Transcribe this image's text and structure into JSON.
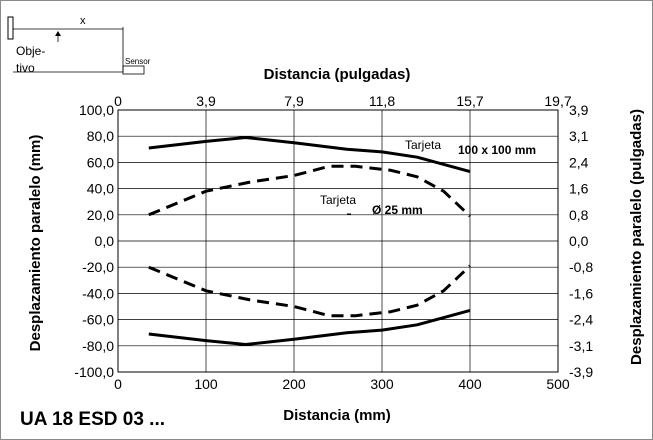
{
  "chart_data": {
    "type": "line",
    "model_label": "UA 18 ESD 03 ...",
    "xlabel": "Distancia (mm)",
    "x2label": "Distancia (pulgadas)",
    "ylabel": "Desplazamiento paralelo (mm)",
    "y2label": "Desplazamiento paralelo (pulgadas)",
    "xlim": [
      0,
      500
    ],
    "ylim": [
      -100,
      100
    ],
    "grid": true,
    "x_ticks": [
      "0",
      "100",
      "200",
      "300",
      "400",
      "500"
    ],
    "x_tick_values": [
      0,
      100,
      200,
      300,
      400,
      500
    ],
    "x2_ticks": [
      "0",
      "3,9",
      "7,9",
      "11,8",
      "15,7",
      "19,7"
    ],
    "y_ticks": [
      "100,0",
      "80,0",
      "60,0",
      "40,0",
      "20,0",
      "0,0",
      "-20,0",
      "-40,0",
      "-60,0",
      "-80,0",
      "-100,0"
    ],
    "y_tick_values": [
      100,
      80,
      60,
      40,
      20,
      0,
      -20,
      -40,
      -60,
      -80,
      -100
    ],
    "y2_ticks": [
      "3,9",
      "3,1",
      "2,4",
      "1,6",
      "0,8",
      "0,0",
      "-0,8",
      "-1,6",
      "-2,4",
      "-3,1",
      "-3,9"
    ],
    "annotations": {
      "tarjeta_large": "Tarjeta",
      "size_large": "100 x 100 mm",
      "tarjeta_small": "Tarjeta",
      "size_small": "Ø 25 mm"
    },
    "series": [
      {
        "style": "solid",
        "x": [
          35,
          100,
          145,
          200,
          260,
          300,
          340,
          400
        ],
        "y": [
          71,
          76,
          79,
          75,
          70,
          68,
          64,
          53
        ]
      },
      {
        "style": "solid",
        "x": [
          35,
          100,
          145,
          200,
          260,
          300,
          340,
          400
        ],
        "y": [
          -71,
          -76,
          -79,
          -75,
          -70,
          -68,
          -64,
          -53
        ]
      },
      {
        "style": "dashed",
        "x": [
          35,
          100,
          150,
          200,
          240,
          270,
          310,
          340,
          370,
          400
        ],
        "y": [
          20,
          38,
          45,
          50,
          57,
          57,
          54,
          49,
          38,
          19
        ]
      },
      {
        "style": "dashed",
        "x": [
          35,
          100,
          150,
          200,
          240,
          270,
          310,
          340,
          370,
          400
        ],
        "y": [
          -20,
          -38,
          -45,
          -50,
          -57,
          -57,
          -54,
          -49,
          -38,
          -19
        ]
      }
    ]
  },
  "diagram": {
    "x_label": "x",
    "target_label_1": "Obje-",
    "target_label_2": "tivo",
    "sensor_label": "Sensor"
  }
}
